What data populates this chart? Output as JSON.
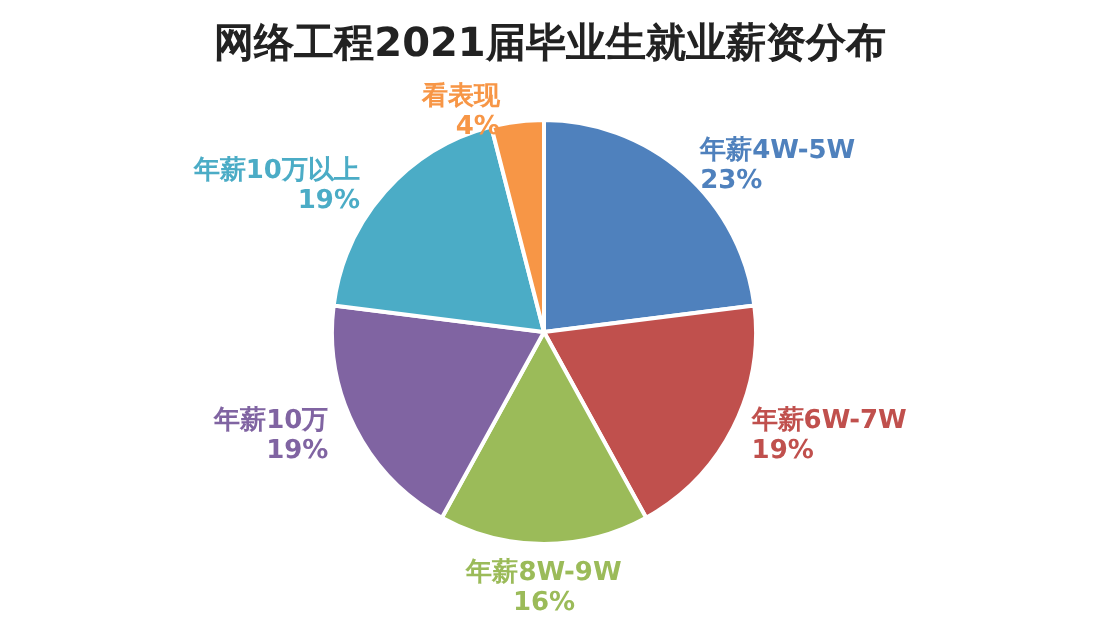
{
  "chart_data": {
    "type": "pie",
    "title": "网络工程2021届毕业生就业薪资分布",
    "categories": [
      "年薪4W-5W",
      "年薪6W-7W",
      "年薪8W-9W",
      "年薪10万",
      "年薪10万以上",
      "看表现"
    ],
    "values": [
      23,
      19,
      16,
      19,
      19,
      4
    ],
    "value_labels": [
      "23%",
      "19%",
      "16%",
      "19%",
      "19%",
      "4%"
    ],
    "colors": [
      "#4f81bd",
      "#c0504d",
      "#9bbb59",
      "#8064a2",
      "#4bacc6",
      "#f79646"
    ]
  }
}
